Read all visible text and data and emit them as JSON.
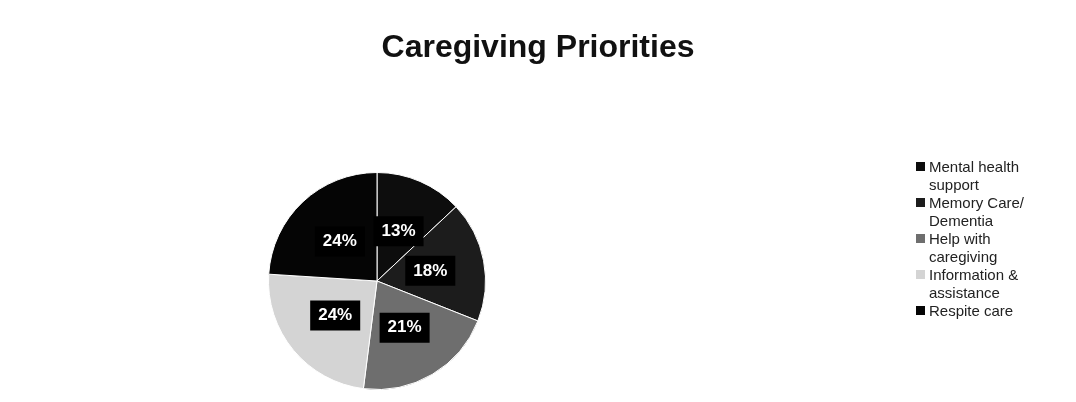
{
  "chart_data": {
    "type": "pie",
    "title": "Caregiving Priorities",
    "categories": [
      "Mental health support",
      "Memory Care/ Dementia",
      "Help with caregiving",
      "Information & assistance",
      "Respite care"
    ],
    "values": [
      13,
      18,
      21,
      24,
      24
    ],
    "value_labels": [
      "13%",
      "18%",
      "21%",
      "24%",
      "24%"
    ],
    "colors": [
      "#0d0d0d",
      "#1c1c1c",
      "#6e6e6e",
      "#d4d4d4",
      "#050505"
    ],
    "legend": "right"
  }
}
